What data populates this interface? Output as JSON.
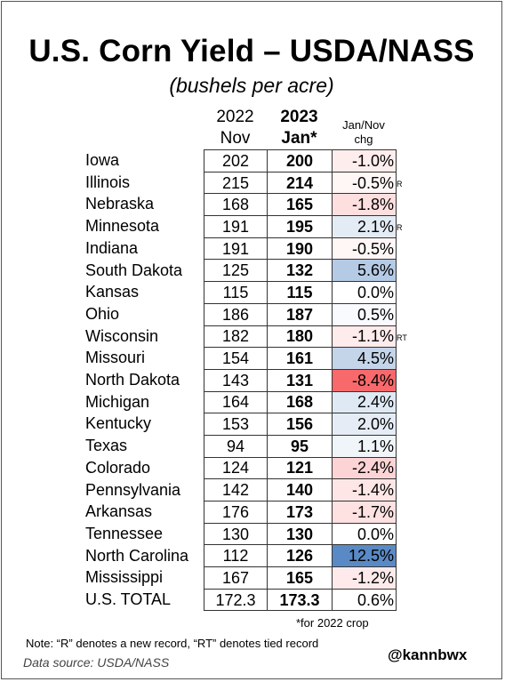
{
  "chart_data": {
    "type": "table",
    "title": "U.S. Corn Yield – USDA/NASS",
    "subtitle": "(bushels per acre)",
    "columns": [
      {
        "line1": "2022",
        "line2": "Nov"
      },
      {
        "line1": "2023",
        "line2": "Jan*"
      },
      {
        "line1": "Jan/Nov",
        "line2": "chg"
      }
    ],
    "rows": [
      {
        "state": "Iowa",
        "nov": "202",
        "jan": "200",
        "chg": "-1.0%",
        "chg_value": -1.0,
        "flag": ""
      },
      {
        "state": "Illinois",
        "nov": "215",
        "jan": "214",
        "chg": "-0.5%",
        "chg_value": -0.5,
        "flag": "R"
      },
      {
        "state": "Nebraska",
        "nov": "168",
        "jan": "165",
        "chg": "-1.8%",
        "chg_value": -1.8,
        "flag": ""
      },
      {
        "state": "Minnesota",
        "nov": "191",
        "jan": "195",
        "chg": "2.1%",
        "chg_value": 2.1,
        "flag": "R"
      },
      {
        "state": "Indiana",
        "nov": "191",
        "jan": "190",
        "chg": "-0.5%",
        "chg_value": -0.5,
        "flag": ""
      },
      {
        "state": "South Dakota",
        "nov": "125",
        "jan": "132",
        "chg": "5.6%",
        "chg_value": 5.6,
        "flag": ""
      },
      {
        "state": "Kansas",
        "nov": "115",
        "jan": "115",
        "chg": "0.0%",
        "chg_value": 0.0,
        "flag": ""
      },
      {
        "state": "Ohio",
        "nov": "186",
        "jan": "187",
        "chg": "0.5%",
        "chg_value": 0.5,
        "flag": ""
      },
      {
        "state": "Wisconsin",
        "nov": "182",
        "jan": "180",
        "chg": "-1.1%",
        "chg_value": -1.1,
        "flag": "RT"
      },
      {
        "state": "Missouri",
        "nov": "154",
        "jan": "161",
        "chg": "4.5%",
        "chg_value": 4.5,
        "flag": ""
      },
      {
        "state": "North Dakota",
        "nov": "143",
        "jan": "131",
        "chg": "-8.4%",
        "chg_value": -8.4,
        "flag": ""
      },
      {
        "state": "Michigan",
        "nov": "164",
        "jan": "168",
        "chg": "2.4%",
        "chg_value": 2.4,
        "flag": ""
      },
      {
        "state": "Kentucky",
        "nov": "153",
        "jan": "156",
        "chg": "2.0%",
        "chg_value": 2.0,
        "flag": ""
      },
      {
        "state": "Texas",
        "nov": "94",
        "jan": "95",
        "chg": "1.1%",
        "chg_value": 1.1,
        "flag": ""
      },
      {
        "state": "Colorado",
        "nov": "124",
        "jan": "121",
        "chg": "-2.4%",
        "chg_value": -2.4,
        "flag": ""
      },
      {
        "state": "Pennsylvania",
        "nov": "142",
        "jan": "140",
        "chg": "-1.4%",
        "chg_value": -1.4,
        "flag": ""
      },
      {
        "state": "Arkansas",
        "nov": "176",
        "jan": "173",
        "chg": "-1.7%",
        "chg_value": -1.7,
        "flag": ""
      },
      {
        "state": "Tennessee",
        "nov": "130",
        "jan": "130",
        "chg": "0.0%",
        "chg_value": 0.0,
        "flag": ""
      },
      {
        "state": "North Carolina",
        "nov": "112",
        "jan": "126",
        "chg": "12.5%",
        "chg_value": 12.5,
        "flag": ""
      },
      {
        "state": "Mississippi",
        "nov": "167",
        "jan": "165",
        "chg": "-1.2%",
        "chg_value": -1.2,
        "flag": ""
      }
    ],
    "total": {
      "state": "U.S. TOTAL",
      "nov": "172.3",
      "jan": "173.3",
      "chg": "0.6%"
    },
    "heat_colors": {
      "negative": "#f8696b",
      "positive": "#5a8ac6",
      "neutral": "#ffffff"
    }
  },
  "footnote_crop": "*for 2022 crop",
  "note": "Note: “R” denotes a new record, “RT” denotes tied record",
  "source": "Data source: USDA/NASS",
  "handle": "@kannbwx"
}
